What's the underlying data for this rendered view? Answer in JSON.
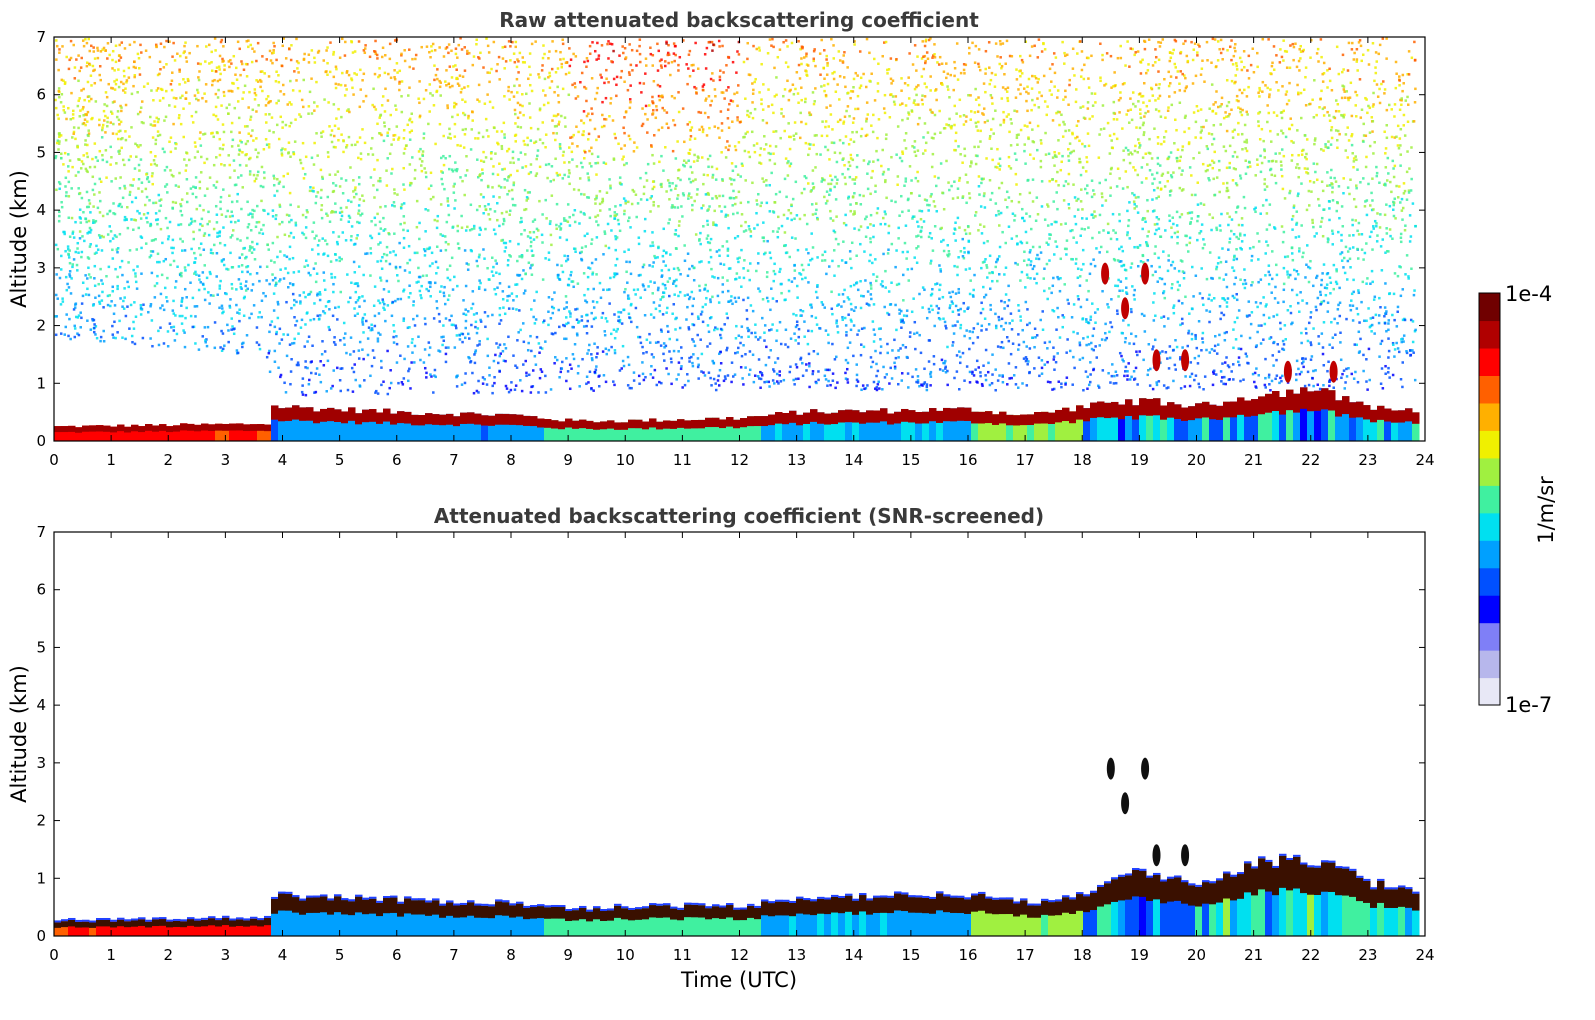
{
  "chart_data": [
    {
      "type": "heatmap",
      "title": "Raw attenuated backscattering coefficient",
      "xlabel": "",
      "ylabel": "Altitude (km)",
      "xlim": [
        0,
        24
      ],
      "ylim": [
        0,
        7
      ],
      "xticks": [
        "0",
        "1",
        "2",
        "3",
        "4",
        "5",
        "6",
        "7",
        "8",
        "9",
        "10",
        "11",
        "12",
        "13",
        "14",
        "15",
        "16",
        "17",
        "18",
        "19",
        "20",
        "21",
        "22",
        "23",
        "24"
      ],
      "yticks": [
        "0",
        "1",
        "2",
        "3",
        "4",
        "5",
        "6",
        "7"
      ],
      "grid": false,
      "colorbar": "shared",
      "features": {
        "boundary_layer_top_km": [
          [
            0,
            0.25
          ],
          [
            3.7,
            0.3
          ],
          [
            3.8,
            0.6
          ],
          [
            6,
            0.5
          ],
          [
            8,
            0.45
          ],
          [
            9,
            0.35
          ],
          [
            10,
            0.35
          ],
          [
            12,
            0.4
          ],
          [
            13,
            0.5
          ],
          [
            16,
            0.55
          ],
          [
            17,
            0.45
          ],
          [
            18,
            0.6
          ],
          [
            19,
            0.7
          ],
          [
            20,
            0.6
          ],
          [
            21,
            0.8
          ],
          [
            22,
            0.9
          ],
          [
            23,
            0.6
          ],
          [
            23.8,
            0.5
          ]
        ],
        "noise_bottom_km": [
          [
            0,
            1.8
          ],
          [
            3.7,
            1.5
          ],
          [
            3.8,
            0.8
          ],
          [
            12,
            0.9
          ],
          [
            18,
            0.9
          ],
          [
            24,
            0.9
          ]
        ],
        "clouds": [
          {
            "time": 18.4,
            "alt_km": 2.9
          },
          {
            "time": 18.75,
            "alt_km": 2.3
          },
          {
            "time": 19.1,
            "alt_km": 2.9
          },
          {
            "time": 19.3,
            "alt_km": 1.4
          },
          {
            "time": 19.8,
            "alt_km": 1.4
          },
          {
            "time": 21.6,
            "alt_km": 1.2
          },
          {
            "time": 22.4,
            "alt_km": 1.2
          }
        ]
      }
    },
    {
      "type": "heatmap",
      "title": "Attenuated backscattering coefficient (SNR-screened)",
      "xlabel": "Time (UTC)",
      "ylabel": "Altitude (km)",
      "xlim": [
        0,
        24
      ],
      "ylim": [
        0,
        7
      ],
      "xticks": [
        "0",
        "1",
        "2",
        "3",
        "4",
        "5",
        "6",
        "7",
        "8",
        "9",
        "10",
        "11",
        "12",
        "13",
        "14",
        "15",
        "16",
        "17",
        "18",
        "19",
        "20",
        "21",
        "22",
        "23",
        "24"
      ],
      "yticks": [
        "0",
        "1",
        "2",
        "3",
        "4",
        "5",
        "6",
        "7"
      ],
      "grid": false,
      "colorbar": "shared",
      "features": {
        "boundary_layer_top_km": [
          [
            0,
            0.25
          ],
          [
            3.7,
            0.3
          ],
          [
            3.8,
            0.7
          ],
          [
            6,
            0.6
          ],
          [
            8,
            0.55
          ],
          [
            9,
            0.45
          ],
          [
            10,
            0.5
          ],
          [
            12,
            0.5
          ],
          [
            13,
            0.65
          ],
          [
            16,
            0.7
          ],
          [
            17,
            0.55
          ],
          [
            18,
            0.75
          ],
          [
            19,
            1.1
          ],
          [
            20,
            0.9
          ],
          [
            21,
            1.3
          ],
          [
            22,
            1.3
          ],
          [
            23,
            0.9
          ],
          [
            23.8,
            0.8
          ]
        ],
        "clouds": [
          {
            "time": 18.5,
            "alt_km": 2.9
          },
          {
            "time": 18.75,
            "alt_km": 2.3
          },
          {
            "time": 19.1,
            "alt_km": 2.9
          },
          {
            "time": 19.3,
            "alt_km": 1.4
          },
          {
            "time": 19.8,
            "alt_km": 1.4
          }
        ]
      }
    }
  ],
  "colorbar": {
    "label": "1/m/sr",
    "max_label": "1e-4",
    "min_label": "1e-7",
    "range": [
      1e-07,
      0.0001
    ],
    "scale": "log",
    "colormap": [
      "#e8e8f6",
      "#b7b7ec",
      "#7f7ff7",
      "#0000ff",
      "#0050ff",
      "#00a0ff",
      "#00e0f0",
      "#40f0a0",
      "#a0f040",
      "#f0f000",
      "#ffb000",
      "#ff6000",
      "#ff0000",
      "#b00000",
      "#700000"
    ]
  }
}
